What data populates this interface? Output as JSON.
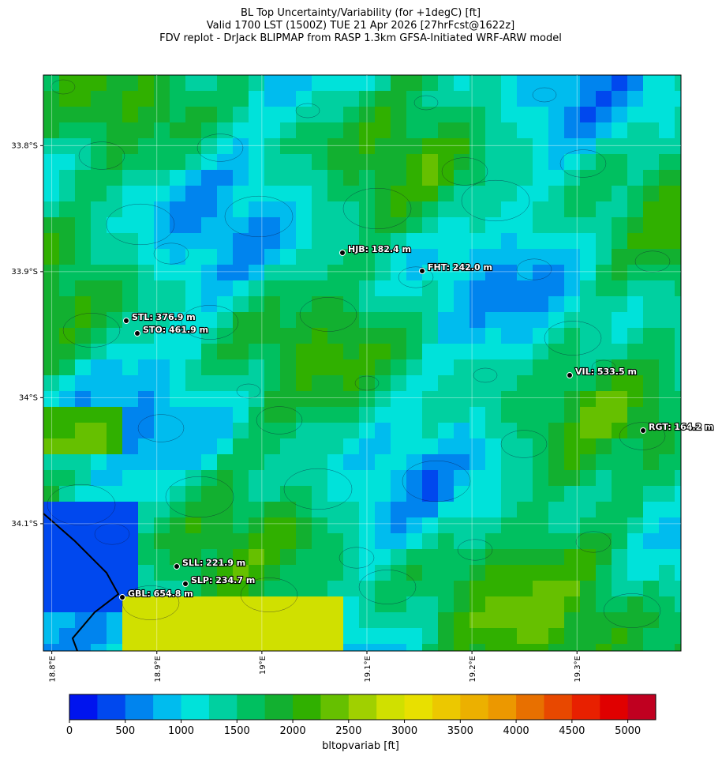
{
  "title_lines": [
    "BL Top Uncertainty/Variability (for +1degC) [ft]",
    "Valid 1700 LST (1500Z) TUE 21 Apr 2026 [27hrFcst@1622z]",
    "FDV replot - DrJack BLIPMAP from RASP 1.3km GFSA-Initiated WRF-ARW model"
  ],
  "map": {
    "xlim": [
      18.792,
      19.399
    ],
    "ylim": [
      -33.744,
      -34.201
    ],
    "xticks": [
      {
        "value": 18.8,
        "label": "18.8°E"
      },
      {
        "value": 18.9,
        "label": "18.9°E"
      },
      {
        "value": 19.0,
        "label": "19°E"
      },
      {
        "value": 19.1,
        "label": "19.1°E"
      },
      {
        "value": 19.2,
        "label": "19.2°E"
      },
      {
        "value": 19.3,
        "label": "19.3°E"
      }
    ],
    "yticks": [
      {
        "value": -33.8,
        "label": "33.8°S"
      },
      {
        "value": -33.9,
        "label": "33.9°S"
      },
      {
        "value": -34.0,
        "label": "34°S"
      },
      {
        "value": -34.1,
        "label": "34.1°S"
      }
    ],
    "grid": true,
    "stations": [
      "HJB: 182.4 m",
      "FHT: 242.0 m",
      "STL: 376.9 m",
      "STO: 461.9 m",
      "VIL: 533.5 m",
      "RGT: 164.2 m",
      "SLL: 221.9 m",
      "SLP: 234.7 m",
      "GBL: 654.8 m"
    ]
  },
  "colorbar": {
    "label": "bltopvariab [ft]",
    "lim": [
      0,
      5250
    ],
    "ticks": [
      0,
      500,
      1000,
      1500,
      2000,
      2500,
      3000,
      3500,
      4000,
      4500,
      5000
    ],
    "colors": [
      "#0014ee",
      "#0048ee",
      "#0084ee",
      "#00bcee",
      "#00e2da",
      "#00d0a0",
      "#00c060",
      "#12b030",
      "#30b000",
      "#66c000",
      "#a0d000",
      "#d0e000",
      "#e8e000",
      "#ecc800",
      "#ecb000",
      "#ec9800",
      "#e87000",
      "#e84800",
      "#e82000",
      "#e00000",
      "#c00020"
    ]
  }
}
